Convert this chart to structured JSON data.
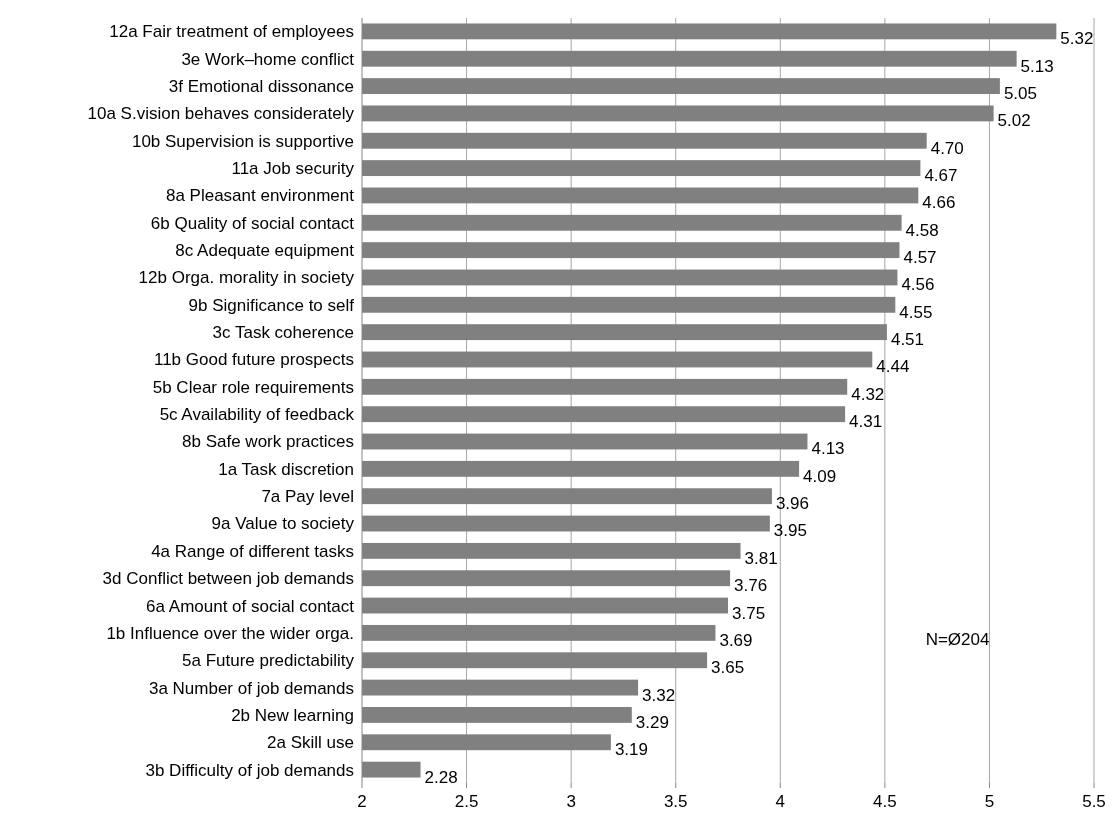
{
  "chart_data": {
    "type": "bar",
    "orientation": "horizontal",
    "categories": [
      "12a Fair treatment of employees",
      "3e Work–home conflict",
      "3f Emotional dissonance",
      "10a S.vision behaves considerately",
      "10b Supervision is supportive",
      "11a Job security",
      "8a Pleasant environment",
      "6b Quality of social contact",
      "8c Adequate equipment",
      "12b Orga. morality in society",
      "9b Significance to self",
      "3c Task coherence",
      "11b Good future prospects",
      "5b Clear role requirements",
      "5c Availability of feedback",
      "8b Safe work practices",
      "1a Task discretion",
      "7a Pay level",
      "9a Value to society",
      "4a Range of different tasks",
      "3d Conflict between job demands",
      "6a Amount of social contact",
      "1b Influence over the wider orga.",
      "5a Future predictability",
      "3a Number of job demands",
      "2b New learning",
      "2a Skill use",
      "3b Difficulty of job demands"
    ],
    "values": [
      5.32,
      5.13,
      5.05,
      5.02,
      4.7,
      4.67,
      4.66,
      4.58,
      4.57,
      4.56,
      4.55,
      4.51,
      4.44,
      4.32,
      4.31,
      4.13,
      4.09,
      3.96,
      3.95,
      3.81,
      3.76,
      3.75,
      3.69,
      3.65,
      3.32,
      3.29,
      3.19,
      2.28
    ],
    "value_labels": [
      "5.32",
      "5.13",
      "5.05",
      "5.02",
      "4.70",
      "4.67",
      "4.66",
      "4.58",
      "4.57",
      "4.56",
      "4.55",
      "4.51",
      "4.44",
      "4.32",
      "4.31",
      "4.13",
      "4.09",
      "3.96",
      "3.95",
      "3.81",
      "3.76",
      "3.75",
      "3.69",
      "3.65",
      "3.32",
      "3.29",
      "3.19",
      "2.28"
    ],
    "color": "#808080",
    "xlim": [
      2,
      5.5
    ],
    "xticks": [
      2,
      2.5,
      3,
      3.5,
      4,
      4.5,
      5,
      5.5
    ],
    "grid": "x",
    "annotations": [
      "N=Ø204"
    ]
  }
}
